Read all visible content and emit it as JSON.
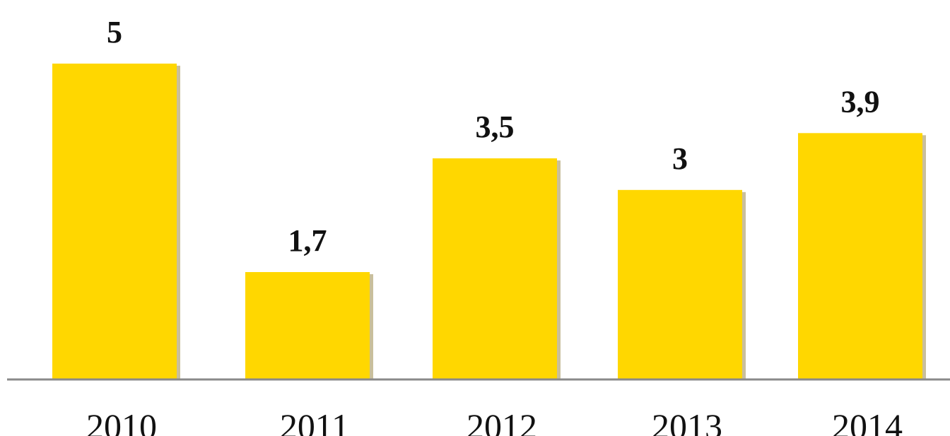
{
  "chart_data": {
    "type": "bar",
    "title": "",
    "categories": [
      "2010",
      "2011",
      "2012",
      "2013",
      "2014"
    ],
    "values": [
      5,
      1.7,
      3.5,
      3,
      3.9
    ],
    "value_labels": [
      "5",
      "1,7",
      "3,5",
      "3",
      "3,9"
    ],
    "xlabel": "",
    "ylabel": "",
    "ylim": [
      0,
      5.0
    ],
    "grid": false,
    "legend": "none",
    "colors": {
      "bar": "#FFD700",
      "bar_shadow": "#9c8a4a",
      "axis": "#8a8a8a",
      "text": "#111111"
    }
  }
}
